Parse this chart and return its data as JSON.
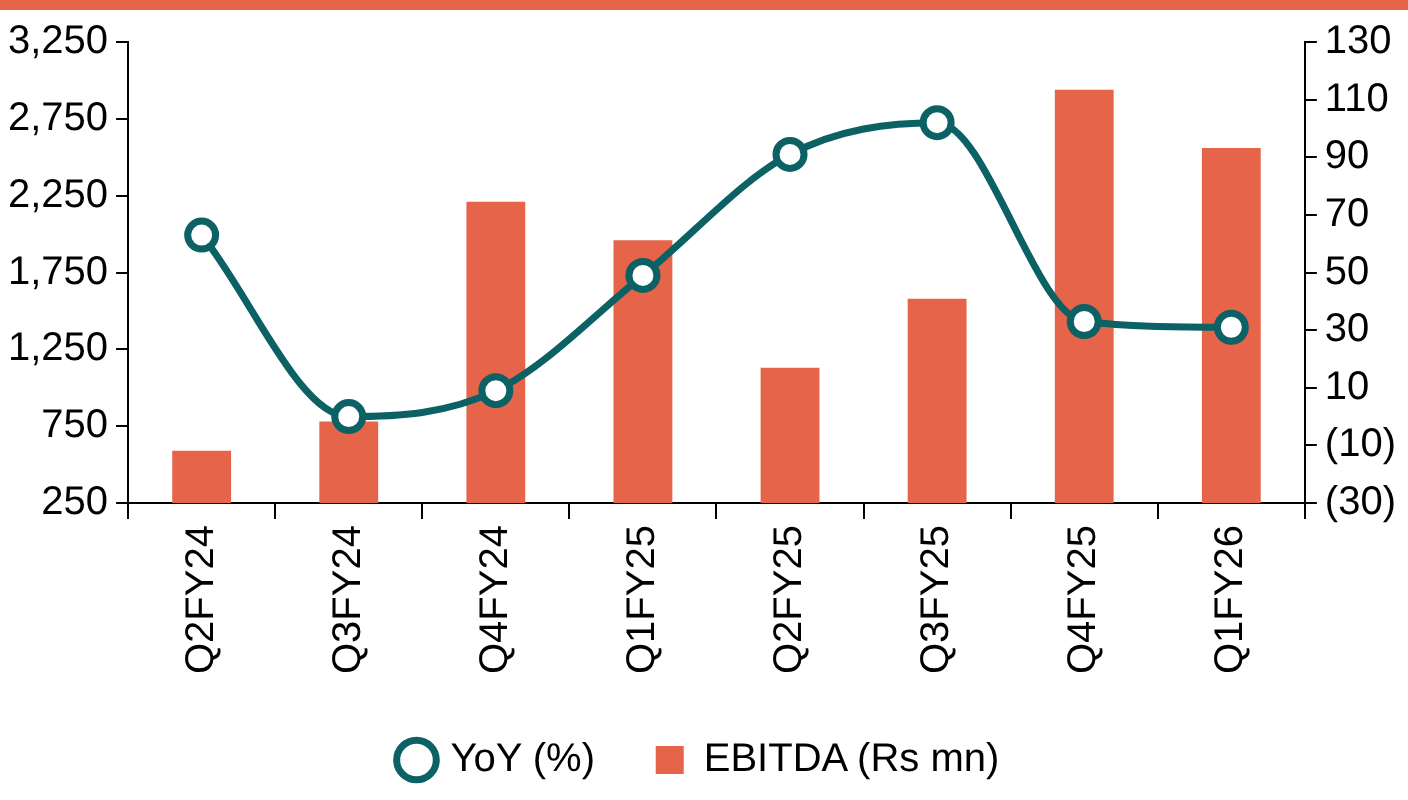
{
  "chart_data": {
    "type": "bar",
    "categories": [
      "Q2FY24",
      "Q3FY24",
      "Q4FY24",
      "Q1FY25",
      "Q2FY25",
      "Q3FY25",
      "Q4FY25",
      "Q1FY26"
    ],
    "series": [
      {
        "name": "EBITDA (Rs mn)",
        "color": "#e5644a",
        "values": [
          590,
          780,
          2210,
          1960,
          1130,
          1580,
          2940,
          2560
        ]
      },
      {
        "name": "YoY (%)",
        "type": "line",
        "axis": "y2",
        "color": "#0b6163",
        "marker": "circle",
        "line_style": "solid",
        "values": [
          63,
          0,
          9,
          49,
          91,
          102,
          33,
          31
        ]
      }
    ],
    "ylim": [
      250,
      3250
    ],
    "yticks": [
      250,
      750,
      {
        "value": 1250,
        "label": "1,250"
      },
      {
        "value": 1750,
        "label": "1,750"
      },
      {
        "value": 2250,
        "label": "2,250"
      },
      {
        "value": 2750,
        "label": "2,750"
      },
      {
        "value": 3250,
        "label": "3,250"
      }
    ],
    "y2lim": [
      -30,
      130
    ],
    "y2ticks": [
      {
        "value": -30,
        "label": "(30)"
      },
      {
        "value": -10,
        "label": "(10)"
      },
      10,
      30,
      50,
      70,
      90,
      110,
      130
    ],
    "grid": false,
    "legend": "bottom"
  }
}
